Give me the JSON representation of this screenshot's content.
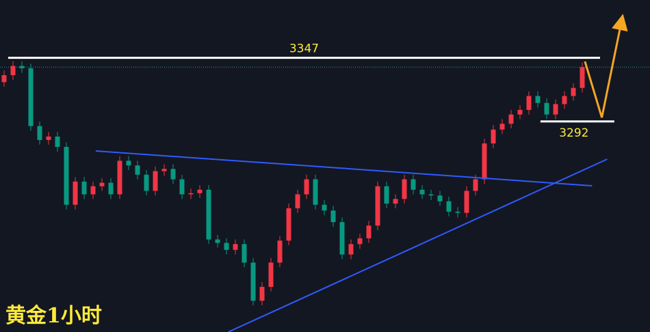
{
  "chart_data": {
    "type": "candlestick",
    "title": "黄金1小时",
    "open": [
      3326,
      3332,
      3340,
      3338,
      3288,
      3276,
      3279,
      3270,
      3220,
      3240,
      3229,
      3236,
      3239,
      3229,
      3258,
      3254,
      3246,
      3232,
      3249,
      3251,
      3242,
      3229,
      3230,
      3233,
      3190,
      3187,
      3181,
      3186,
      3170,
      3137,
      3149,
      3170,
      3189,
      3217,
      3229,
      3242,
      3220,
      3215,
      3205,
      3177,
      3186,
      3191,
      3202,
      3236,
      3221,
      3225,
      3242,
      3233,
      3229,
      3228,
      3223,
      3214,
      3213,
      3232,
      3242,
      3273,
      3285,
      3290,
      3298,
      3302,
      3314,
      3308,
      3298,
      3307,
      3314,
      3321
    ],
    "high": [
      3336,
      3344,
      3344,
      3342,
      3292,
      3283,
      3283,
      3274,
      3244,
      3244,
      3240,
      3243,
      3243,
      3262,
      3262,
      3258,
      3250,
      3253,
      3255,
      3255,
      3246,
      3234,
      3237,
      3237,
      3194,
      3191,
      3190,
      3190,
      3174,
      3153,
      3174,
      3193,
      3221,
      3233,
      3246,
      3246,
      3224,
      3219,
      3209,
      3190,
      3195,
      3206,
      3240,
      3240,
      3229,
      3246,
      3246,
      3237,
      3233,
      3232,
      3227,
      3218,
      3236,
      3246,
      3277,
      3289,
      3294,
      3302,
      3306,
      3318,
      3318,
      3312,
      3311,
      3318,
      3325,
      3343
    ],
    "low": [
      3322,
      3328,
      3334,
      3284,
      3272,
      3272,
      3266,
      3216,
      3216,
      3225,
      3225,
      3232,
      3225,
      3225,
      3250,
      3242,
      3228,
      3228,
      3245,
      3238,
      3225,
      3225,
      3226,
      3186,
      3183,
      3177,
      3177,
      3166,
      3133,
      3133,
      3145,
      3166,
      3185,
      3213,
      3225,
      3216,
      3211,
      3201,
      3173,
      3173,
      3182,
      3187,
      3198,
      3217,
      3217,
      3221,
      3229,
      3225,
      3224,
      3219,
      3210,
      3209,
      3209,
      3228,
      3238,
      3269,
      3281,
      3286,
      3294,
      3298,
      3304,
      3294,
      3294,
      3303,
      3310,
      3317
    ],
    "close": [
      3332,
      3340,
      3338,
      3288,
      3276,
      3279,
      3270,
      3220,
      3240,
      3229,
      3236,
      3239,
      3229,
      3258,
      3254,
      3246,
      3232,
      3249,
      3251,
      3242,
      3229,
      3230,
      3233,
      3190,
      3187,
      3181,
      3186,
      3170,
      3137,
      3149,
      3170,
      3189,
      3217,
      3229,
      3242,
      3220,
      3215,
      3205,
      3177,
      3186,
      3191,
      3202,
      3236,
      3221,
      3225,
      3242,
      3233,
      3229,
      3228,
      3223,
      3214,
      3213,
      3232,
      3242,
      3273,
      3285,
      3290,
      3298,
      3302,
      3314,
      3308,
      3298,
      3307,
      3314,
      3321,
      3339
    ],
    "up_color": "#f23645",
    "down_color": "#089981",
    "ylim": [
      3110,
      3397
    ],
    "levels": [
      {
        "value": 3347,
        "x": [
          0.46,
          67
        ]
      },
      {
        "value": 3292,
        "x": [
          60.3,
          68.6
        ]
      }
    ],
    "trendlines": [
      {
        "x": [
          10.3,
          66.1
        ],
        "y": [
          3266.5,
          3236.4
        ],
        "color": "#2f5bff"
      },
      {
        "x": [
          25.2,
          67.8
        ],
        "y": [
          3110,
          3259.4
        ],
        "color": "#2f5bff"
      }
    ],
    "arrow": {
      "x": [
        65.3,
        67.2,
        69.4
      ],
      "y": [
        3343.9,
        3295.4,
        3378.1
      ],
      "color": "#f5a623"
    }
  }
}
